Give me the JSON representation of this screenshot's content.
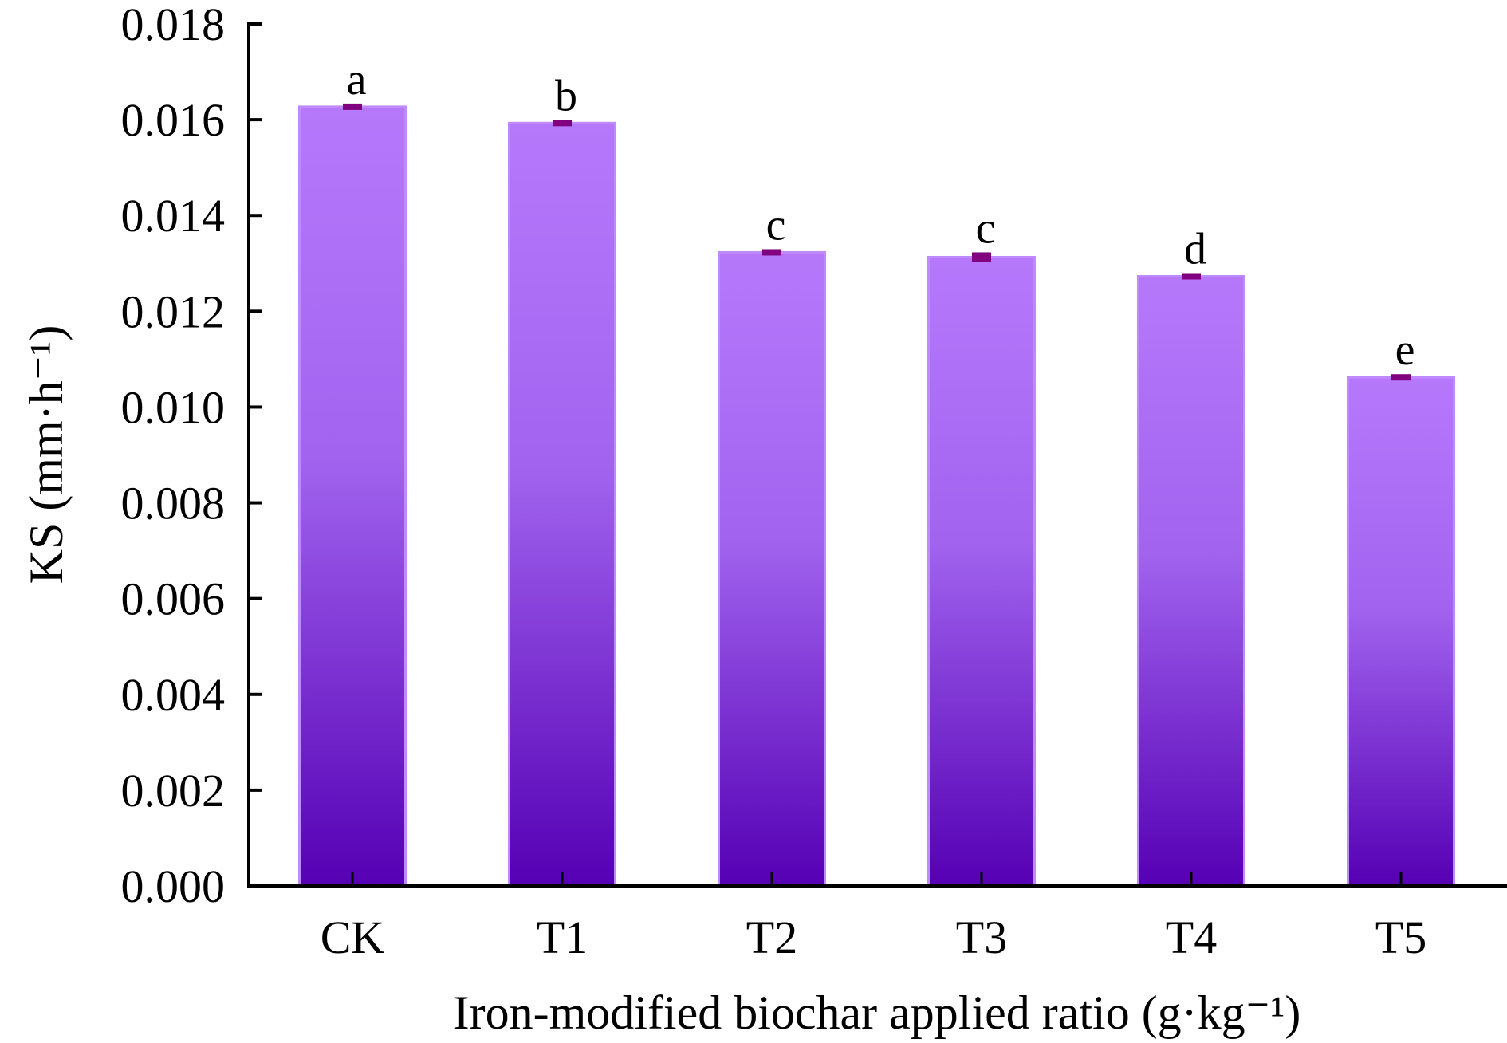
{
  "chart_data": {
    "type": "bar",
    "title": "",
    "xlabel": "Iron-modified biochar applied ratio (g·kg⁻¹)",
    "ylabel": "KS (mm·h⁻¹)",
    "categories": [
      "CK",
      "T1",
      "T2",
      "T3",
      "T4",
      "T5"
    ],
    "values": [
      0.01627,
      0.01593,
      0.01323,
      0.01313,
      0.01273,
      0.01062
    ],
    "errors": [
      5e-05,
      4e-05,
      5e-05,
      0.0001,
      5e-05,
      4e-05
    ],
    "significance_letters": [
      "a",
      "b",
      "c",
      "c",
      "d",
      "e"
    ],
    "ylim": [
      0,
      0.018
    ],
    "yticks": [
      "0.000",
      "0.002",
      "0.004",
      "0.006",
      "0.008",
      "0.010",
      "0.012",
      "0.014",
      "0.016",
      "0.018"
    ],
    "grid": false,
    "legend": "none",
    "colors": {
      "bar_top": "#b678fb",
      "bar_bottom": "#5500b4",
      "bar_edge": "#c08aff",
      "error_bar": "#800080"
    }
  }
}
